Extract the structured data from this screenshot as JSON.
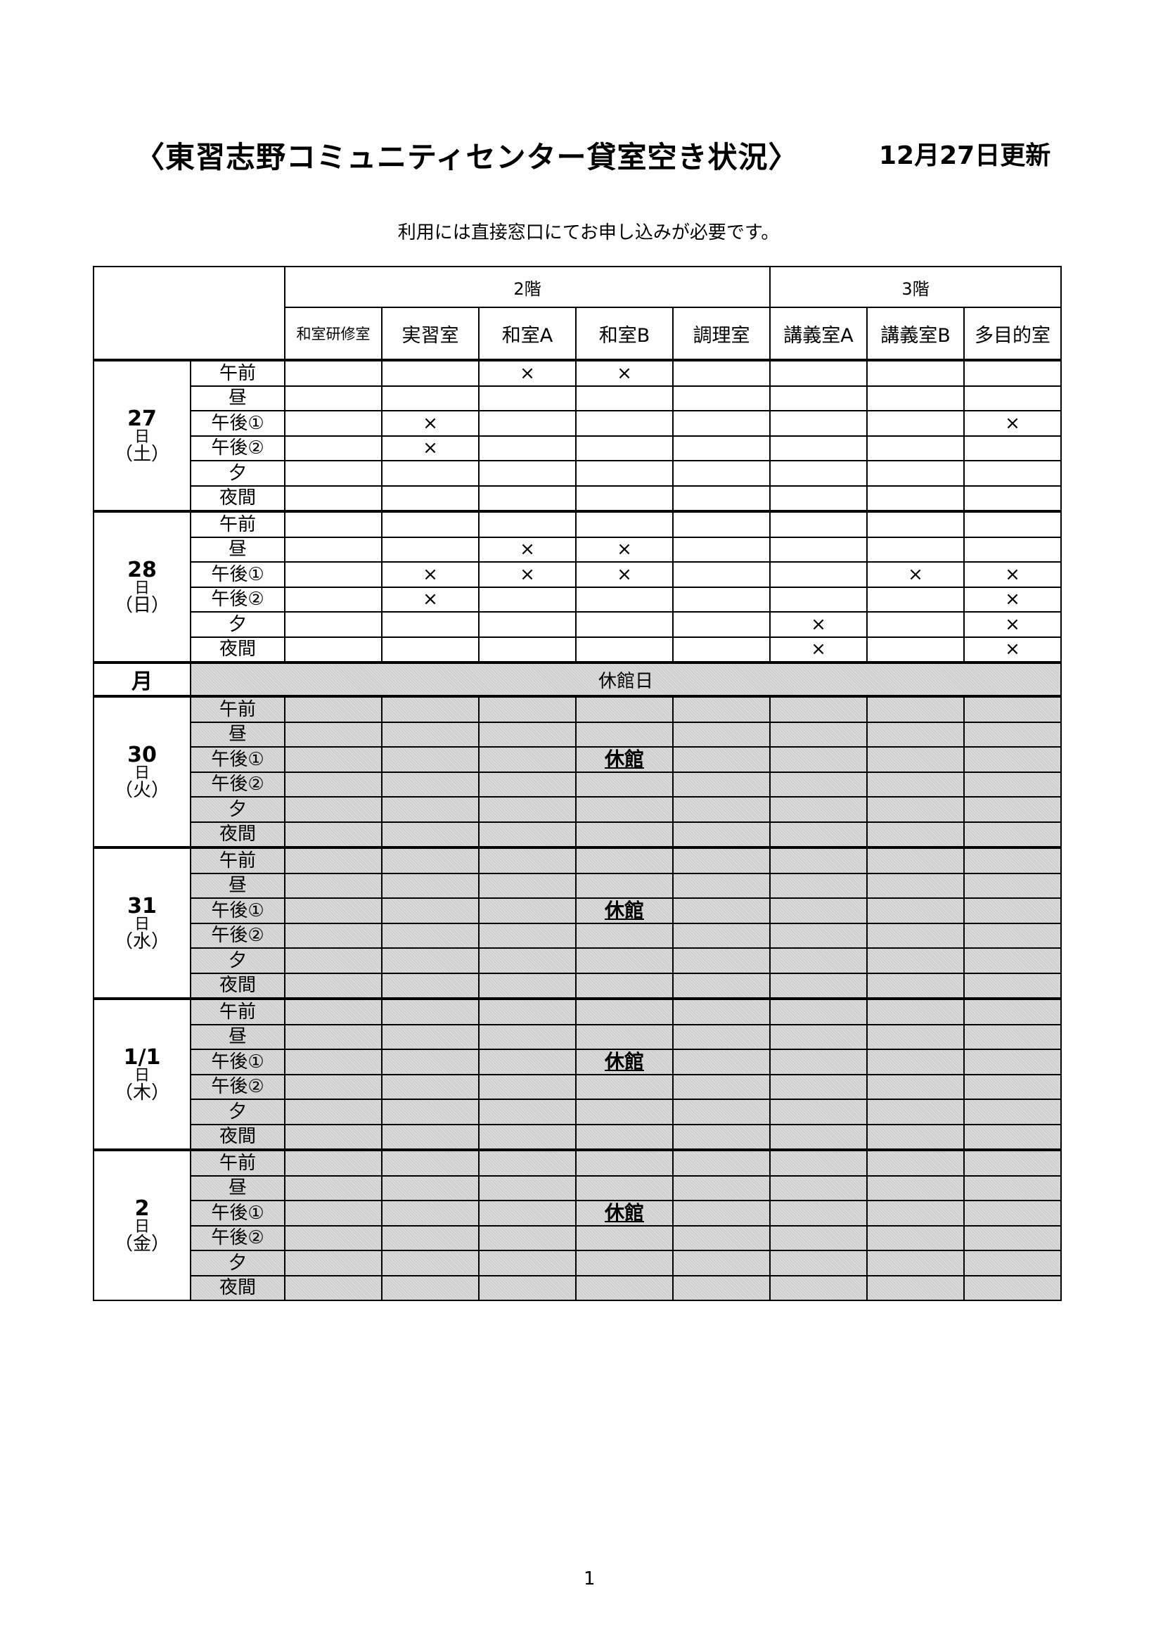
{
  "header": {
    "title": "〈東習志野コミュニティセンター貸室空き状況〉",
    "updated": "12月27日更新",
    "note": "利用には直接窓口にてお申し込みが必要です。"
  },
  "floors": [
    {
      "label": "2階",
      "span": 5
    },
    {
      "label": "3階",
      "span": 3
    }
  ],
  "rooms": [
    "和室研修室",
    "実習室",
    "和室A",
    "和室B",
    "調理室",
    "講義室A",
    "講義室B",
    "多目的室"
  ],
  "slots": [
    "午前",
    "昼",
    "午後①",
    "午後②",
    "夕",
    "夜間"
  ],
  "mark_symbol": "×",
  "days_before": [
    {
      "num": "27",
      "day_char": "日",
      "weekday": "（土）",
      "grid": [
        [
          "",
          "",
          "×",
          "×",
          "",
          "",
          "",
          ""
        ],
        [
          "",
          "",
          "",
          "",
          "",
          "",
          "",
          ""
        ],
        [
          "",
          "×",
          "",
          "",
          "",
          "",
          "",
          "×"
        ],
        [
          "",
          "×",
          "",
          "",
          "",
          "",
          "",
          ""
        ],
        [
          "",
          "",
          "",
          "",
          "",
          "",
          "",
          ""
        ],
        [
          "",
          "",
          "",
          "",
          "",
          "",
          "",
          ""
        ]
      ]
    },
    {
      "num": "28",
      "day_char": "日",
      "weekday": "（日）",
      "grid": [
        [
          "",
          "",
          "",
          "",
          "",
          "",
          "",
          ""
        ],
        [
          "",
          "",
          "×",
          "×",
          "",
          "",
          "",
          ""
        ],
        [
          "",
          "×",
          "×",
          "×",
          "",
          "",
          "×",
          "×"
        ],
        [
          "",
          "×",
          "",
          "",
          "",
          "",
          "",
          "×"
        ],
        [
          "",
          "",
          "",
          "",
          "",
          "×",
          "",
          "×"
        ],
        [
          "",
          "",
          "",
          "",
          "",
          "×",
          "",
          "×"
        ]
      ]
    }
  ],
  "month_row": {
    "label": "月",
    "text": "休館日"
  },
  "days_closed": [
    {
      "num": "30",
      "day_char": "日",
      "weekday": "（火）",
      "closed_label": "休館"
    },
    {
      "num": "31",
      "day_char": "日",
      "weekday": "（水）",
      "closed_label": "休館"
    },
    {
      "num": "1/1",
      "day_char": "日",
      "weekday": "（木）",
      "closed_label": "休館"
    },
    {
      "num": "2",
      "day_char": "日",
      "weekday": "（金）",
      "closed_label": "休館"
    }
  ],
  "footer": {
    "page": "1"
  },
  "colors": {
    "closed_shading": "#cfcfcf"
  }
}
